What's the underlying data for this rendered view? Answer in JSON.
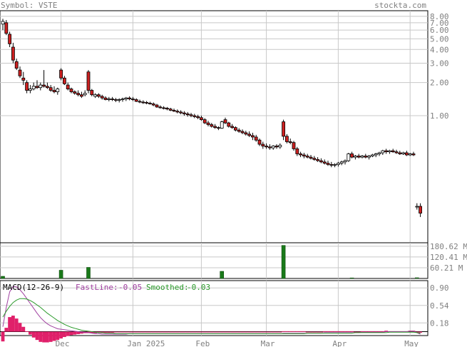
{
  "header": {
    "symbol_label": "Symbol: VSTE",
    "site": "stockta.com"
  },
  "colors": {
    "up_candle": "#ffffff",
    "down_candle": "#cc2020",
    "volume_bar": "#1a7a1a",
    "grid": "#c8c8c8",
    "fastline": "#a040a0",
    "smoothed": "#2a9a2a",
    "histogram": "#e0206a",
    "text_gray": "#808080"
  },
  "chart_data": [
    {
      "type": "candlestick",
      "panel": "price",
      "yscale": "log",
      "ylim": [
        0.07,
        9.0
      ],
      "y_ticks": [
        {
          "value": 8.0,
          "label": "8.00"
        },
        {
          "value": 7.0,
          "label": "7.00"
        },
        {
          "value": 6.0,
          "label": "6.00"
        },
        {
          "value": 5.0,
          "label": "5.00"
        },
        {
          "value": 4.0,
          "label": "4.00"
        },
        {
          "value": 3.0,
          "label": "3.00"
        },
        {
          "value": 2.0,
          "label": "2.00"
        },
        {
          "value": 1.0,
          "label": "1.00"
        }
      ],
      "x_ticks": [
        {
          "index": 17,
          "label": "Dec"
        },
        {
          "index": 38,
          "label": "Jan 2025"
        },
        {
          "index": 58,
          "label": "Feb"
        },
        {
          "index": 77,
          "label": "Mar"
        },
        {
          "index": 98,
          "label": "Apr"
        },
        {
          "index": 119,
          "label": "May"
        }
      ],
      "ohlc": [
        [
          6.8,
          7.6,
          6.0,
          7.2
        ],
        [
          7.0,
          7.4,
          5.4,
          5.6
        ],
        [
          5.5,
          5.8,
          4.2,
          4.5
        ],
        [
          4.2,
          4.6,
          3.0,
          3.2
        ],
        [
          3.1,
          3.3,
          2.6,
          2.7
        ],
        [
          2.6,
          2.8,
          2.2,
          2.3
        ],
        [
          2.2,
          2.5,
          1.9,
          2.1
        ],
        [
          2.0,
          2.1,
          1.6,
          1.7
        ],
        [
          1.7,
          1.9,
          1.6,
          1.75
        ],
        [
          1.75,
          2.0,
          1.7,
          1.85
        ],
        [
          1.85,
          2.1,
          1.75,
          1.8
        ],
        [
          1.8,
          2.0,
          1.7,
          1.9
        ],
        [
          1.9,
          2.6,
          1.8,
          1.85
        ],
        [
          1.85,
          2.0,
          1.75,
          1.8
        ],
        [
          1.8,
          1.9,
          1.65,
          1.7
        ],
        [
          1.7,
          1.85,
          1.6,
          1.65
        ],
        [
          1.65,
          1.8,
          1.55,
          1.75
        ],
        [
          2.6,
          2.7,
          2.1,
          2.2
        ],
        [
          2.2,
          2.3,
          1.9,
          1.95
        ],
        [
          1.9,
          2.0,
          1.7,
          1.75
        ],
        [
          1.75,
          1.8,
          1.6,
          1.65
        ],
        [
          1.65,
          1.7,
          1.55,
          1.6
        ],
        [
          1.6,
          1.7,
          1.5,
          1.55
        ],
        [
          1.55,
          1.65,
          1.45,
          1.5
        ],
        [
          1.55,
          1.7,
          1.5,
          1.6
        ],
        [
          2.5,
          2.6,
          1.6,
          1.7
        ],
        [
          1.7,
          1.75,
          1.5,
          1.55
        ],
        [
          1.5,
          1.6,
          1.45,
          1.55
        ],
        [
          1.55,
          1.6,
          1.45,
          1.5
        ],
        [
          1.5,
          1.55,
          1.4,
          1.45
        ],
        [
          1.45,
          1.5,
          1.38,
          1.4
        ],
        [
          1.4,
          1.48,
          1.35,
          1.42
        ],
        [
          1.42,
          1.48,
          1.36,
          1.4
        ],
        [
          1.4,
          1.45,
          1.33,
          1.38
        ],
        [
          1.38,
          1.44,
          1.32,
          1.4
        ],
        [
          1.4,
          1.46,
          1.34,
          1.42
        ],
        [
          1.42,
          1.48,
          1.36,
          1.45
        ],
        [
          1.45,
          1.5,
          1.38,
          1.42
        ],
        [
          1.42,
          1.48,
          1.36,
          1.4
        ],
        [
          1.4,
          1.44,
          1.33,
          1.35
        ],
        [
          1.35,
          1.4,
          1.3,
          1.33
        ],
        [
          1.33,
          1.38,
          1.28,
          1.32
        ],
        [
          1.32,
          1.36,
          1.27,
          1.3
        ],
        [
          1.3,
          1.34,
          1.26,
          1.28
        ],
        [
          1.28,
          1.32,
          1.22,
          1.25
        ],
        [
          1.25,
          1.28,
          1.18,
          1.2
        ],
        [
          1.2,
          1.24,
          1.16,
          1.18
        ],
        [
          1.18,
          1.22,
          1.14,
          1.17
        ],
        [
          1.17,
          1.2,
          1.12,
          1.15
        ],
        [
          1.15,
          1.18,
          1.1,
          1.12
        ],
        [
          1.12,
          1.16,
          1.08,
          1.1
        ],
        [
          1.1,
          1.14,
          1.05,
          1.08
        ],
        [
          1.08,
          1.12,
          1.03,
          1.06
        ],
        [
          1.06,
          1.1,
          1.0,
          1.04
        ],
        [
          1.04,
          1.08,
          0.98,
          1.02
        ],
        [
          1.02,
          1.06,
          0.97,
          1.0
        ],
        [
          1.0,
          1.04,
          0.95,
          0.98
        ],
        [
          0.98,
          1.02,
          0.93,
          0.96
        ],
        [
          0.96,
          1.0,
          0.9,
          0.92
        ],
        [
          0.92,
          0.95,
          0.84,
          0.86
        ],
        [
          0.86,
          0.9,
          0.8,
          0.83
        ],
        [
          0.83,
          0.86,
          0.78,
          0.8
        ],
        [
          0.8,
          0.84,
          0.76,
          0.78
        ],
        [
          0.78,
          0.8,
          0.74,
          0.77
        ],
        [
          0.77,
          0.9,
          0.76,
          0.88
        ],
        [
          0.92,
          0.96,
          0.84,
          0.86
        ],
        [
          0.86,
          0.88,
          0.78,
          0.8
        ],
        [
          0.8,
          0.84,
          0.76,
          0.78
        ],
        [
          0.78,
          0.8,
          0.72,
          0.74
        ],
        [
          0.74,
          0.77,
          0.7,
          0.72
        ],
        [
          0.72,
          0.75,
          0.68,
          0.7
        ],
        [
          0.7,
          0.73,
          0.66,
          0.68
        ],
        [
          0.68,
          0.72,
          0.64,
          0.66
        ],
        [
          0.66,
          0.7,
          0.6,
          0.64
        ],
        [
          0.64,
          0.67,
          0.58,
          0.6
        ],
        [
          0.6,
          0.62,
          0.53,
          0.55
        ],
        [
          0.55,
          0.58,
          0.5,
          0.53
        ],
        [
          0.53,
          0.56,
          0.5,
          0.52
        ],
        [
          0.52,
          0.55,
          0.49,
          0.51
        ],
        [
          0.51,
          0.54,
          0.49,
          0.53
        ],
        [
          0.53,
          0.55,
          0.5,
          0.52
        ],
        [
          0.52,
          0.56,
          0.5,
          0.54
        ],
        [
          0.88,
          0.92,
          0.6,
          0.65
        ],
        [
          0.65,
          0.68,
          0.56,
          0.58
        ],
        [
          0.58,
          0.62,
          0.55,
          0.57
        ],
        [
          0.57,
          0.59,
          0.48,
          0.5
        ],
        [
          0.5,
          0.52,
          0.43,
          0.45
        ],
        [
          0.45,
          0.47,
          0.42,
          0.44
        ],
        [
          0.44,
          0.46,
          0.41,
          0.43
        ],
        [
          0.43,
          0.45,
          0.41,
          0.42
        ],
        [
          0.42,
          0.44,
          0.4,
          0.41
        ],
        [
          0.41,
          0.43,
          0.39,
          0.4
        ],
        [
          0.4,
          0.42,
          0.38,
          0.39
        ],
        [
          0.39,
          0.41,
          0.37,
          0.38
        ],
        [
          0.38,
          0.4,
          0.36,
          0.37
        ],
        [
          0.37,
          0.39,
          0.35,
          0.36
        ],
        [
          0.36,
          0.38,
          0.34,
          0.355
        ],
        [
          0.355,
          0.37,
          0.34,
          0.36
        ],
        [
          0.36,
          0.38,
          0.345,
          0.37
        ],
        [
          0.37,
          0.39,
          0.355,
          0.38
        ],
        [
          0.38,
          0.4,
          0.36,
          0.39
        ],
        [
          0.39,
          0.46,
          0.38,
          0.45
        ],
        [
          0.45,
          0.47,
          0.41,
          0.42
        ],
        [
          0.42,
          0.44,
          0.4,
          0.43
        ],
        [
          0.43,
          0.45,
          0.41,
          0.42
        ],
        [
          0.42,
          0.44,
          0.41,
          0.43
        ],
        [
          0.43,
          0.45,
          0.41,
          0.42
        ],
        [
          0.42,
          0.44,
          0.4,
          0.43
        ],
        [
          0.43,
          0.45,
          0.42,
          0.44
        ],
        [
          0.44,
          0.46,
          0.42,
          0.45
        ],
        [
          0.45,
          0.47,
          0.43,
          0.46
        ],
        [
          0.46,
          0.49,
          0.44,
          0.48
        ],
        [
          0.48,
          0.5,
          0.45,
          0.47
        ],
        [
          0.47,
          0.49,
          0.45,
          0.48
        ],
        [
          0.48,
          0.5,
          0.46,
          0.47
        ],
        [
          0.47,
          0.49,
          0.45,
          0.46
        ],
        [
          0.46,
          0.48,
          0.44,
          0.45
        ],
        [
          0.45,
          0.47,
          0.44,
          0.46
        ],
        [
          0.46,
          0.48,
          0.43,
          0.44
        ],
        [
          0.44,
          0.46,
          0.43,
          0.45
        ],
        [
          0.45,
          0.47,
          0.43,
          0.44
        ],
        [
          0.15,
          0.16,
          0.14,
          0.15
        ],
        [
          0.15,
          0.16,
          0.12,
          0.13
        ]
      ]
    },
    {
      "type": "bar",
      "panel": "volume",
      "ylim": [
        0,
        200
      ],
      "y_ticks": [
        {
          "value": 180.62,
          "label": "180.62 M"
        },
        {
          "value": 120.41,
          "label": "120.41 M"
        },
        {
          "value": 60.21,
          "label": "60.21 M"
        }
      ],
      "values_m": [
        12,
        0,
        0,
        0,
        0,
        0,
        0,
        0,
        0,
        0,
        0,
        0,
        0,
        0,
        0,
        0,
        0,
        46,
        0,
        0,
        0,
        0,
        0,
        0,
        0,
        62,
        0,
        0,
        0,
        0,
        0,
        0,
        0,
        0,
        0,
        0,
        0,
        0,
        0,
        0,
        0,
        0,
        0,
        0,
        0,
        0,
        0,
        0,
        0,
        0,
        0,
        0,
        0,
        0,
        0,
        0,
        0,
        0,
        0,
        0,
        0,
        0,
        0,
        0,
        40,
        0,
        0,
        0,
        0,
        0,
        0,
        0,
        0,
        0,
        0,
        0,
        0,
        0,
        0,
        0,
        0,
        0,
        185,
        0,
        0,
        0,
        0,
        0,
        0,
        0,
        0,
        0,
        0,
        0,
        0,
        0,
        0,
        0,
        0,
        0,
        0,
        0,
        3,
        0,
        0,
        0,
        0,
        0,
        0,
        0,
        0,
        0,
        0,
        0,
        0,
        0,
        0,
        0,
        0,
        0,
        0,
        4,
        0
      ]
    },
    {
      "type": "line",
      "panel": "macd",
      "title": "MACD(12-26-9)",
      "ylim": [
        -0.08,
        1.05
      ],
      "y_ticks": [
        {
          "value": 0.9,
          "label": "0.90"
        },
        {
          "value": 0.54,
          "label": "0.54"
        },
        {
          "value": 0.18,
          "label": "0.18"
        }
      ],
      "legend": [
        {
          "name": "FastLine:",
          "value": "-0.05"
        },
        {
          "name": "Smoothed:",
          "value": "-0.03"
        }
      ],
      "fastline": [
        0.1,
        0.5,
        0.82,
        0.93,
        0.92,
        0.86,
        0.78,
        0.68,
        0.58,
        0.48,
        0.38,
        0.29,
        0.22,
        0.16,
        0.12,
        0.09,
        0.06,
        0.05,
        0.04,
        0.03,
        0.02,
        0.01,
        0.0,
        -0.01,
        -0.01,
        -0.02,
        -0.03,
        -0.04,
        -0.04,
        -0.05,
        -0.05,
        -0.05,
        -0.05,
        -0.05,
        -0.05,
        -0.05,
        -0.05,
        -0.04,
        -0.04,
        -0.04,
        -0.04,
        -0.04,
        -0.04,
        -0.04,
        -0.04,
        -0.04,
        -0.04,
        -0.04,
        -0.04,
        -0.04,
        -0.04,
        -0.04,
        -0.04,
        -0.04,
        -0.04,
        -0.04,
        -0.04,
        -0.04,
        -0.04,
        -0.04,
        -0.04,
        -0.04,
        -0.04,
        -0.04,
        -0.04,
        -0.04,
        -0.04,
        -0.04,
        -0.04,
        -0.04,
        -0.04,
        -0.04,
        -0.04,
        -0.04,
        -0.04,
        -0.04,
        -0.04,
        -0.04,
        -0.04,
        -0.04,
        -0.04,
        -0.04,
        -0.03,
        -0.03,
        -0.03,
        -0.03,
        -0.03,
        -0.03,
        -0.03,
        -0.03,
        -0.03,
        -0.03,
        -0.03,
        -0.03,
        -0.02,
        -0.02,
        -0.02,
        -0.02,
        -0.02,
        -0.02,
        -0.02,
        -0.02,
        -0.02,
        -0.02,
        -0.02,
        -0.01,
        -0.01,
        -0.01,
        -0.01,
        -0.01,
        -0.01,
        -0.01,
        0.0,
        0.0,
        0.0,
        0.0,
        0.0,
        0.0,
        0.0,
        0.01,
        0.01,
        -0.02,
        -0.05
      ],
      "smoothed": [
        0.3,
        0.42,
        0.52,
        0.6,
        0.65,
        0.68,
        0.68,
        0.67,
        0.64,
        0.6,
        0.55,
        0.5,
        0.44,
        0.38,
        0.33,
        0.28,
        0.23,
        0.19,
        0.15,
        0.12,
        0.09,
        0.07,
        0.05,
        0.03,
        0.02,
        0.01,
        0.0,
        -0.01,
        -0.02,
        -0.02,
        -0.03,
        -0.03,
        -0.03,
        -0.04,
        -0.04,
        -0.04,
        -0.04,
        -0.04,
        -0.04,
        -0.04,
        -0.04,
        -0.04,
        -0.04,
        -0.04,
        -0.04,
        -0.04,
        -0.04,
        -0.04,
        -0.04,
        -0.04,
        -0.04,
        -0.04,
        -0.04,
        -0.04,
        -0.04,
        -0.04,
        -0.04,
        -0.04,
        -0.04,
        -0.04,
        -0.04,
        -0.04,
        -0.04,
        -0.04,
        -0.04,
        -0.04,
        -0.04,
        -0.04,
        -0.04,
        -0.04,
        -0.04,
        -0.04,
        -0.04,
        -0.04,
        -0.04,
        -0.04,
        -0.04,
        -0.04,
        -0.04,
        -0.04,
        -0.04,
        -0.04,
        -0.04,
        -0.04,
        -0.04,
        -0.04,
        -0.04,
        -0.04,
        -0.04,
        -0.03,
        -0.03,
        -0.03,
        -0.03,
        -0.03,
        -0.03,
        -0.03,
        -0.03,
        -0.03,
        -0.03,
        -0.03,
        -0.03,
        -0.03,
        -0.03,
        -0.02,
        -0.02,
        -0.02,
        -0.02,
        -0.02,
        -0.02,
        -0.02,
        -0.02,
        -0.02,
        -0.02,
        -0.01,
        -0.01,
        -0.01,
        -0.01,
        -0.01,
        -0.01,
        -0.01,
        -0.01,
        -0.02,
        -0.03
      ]
    }
  ]
}
